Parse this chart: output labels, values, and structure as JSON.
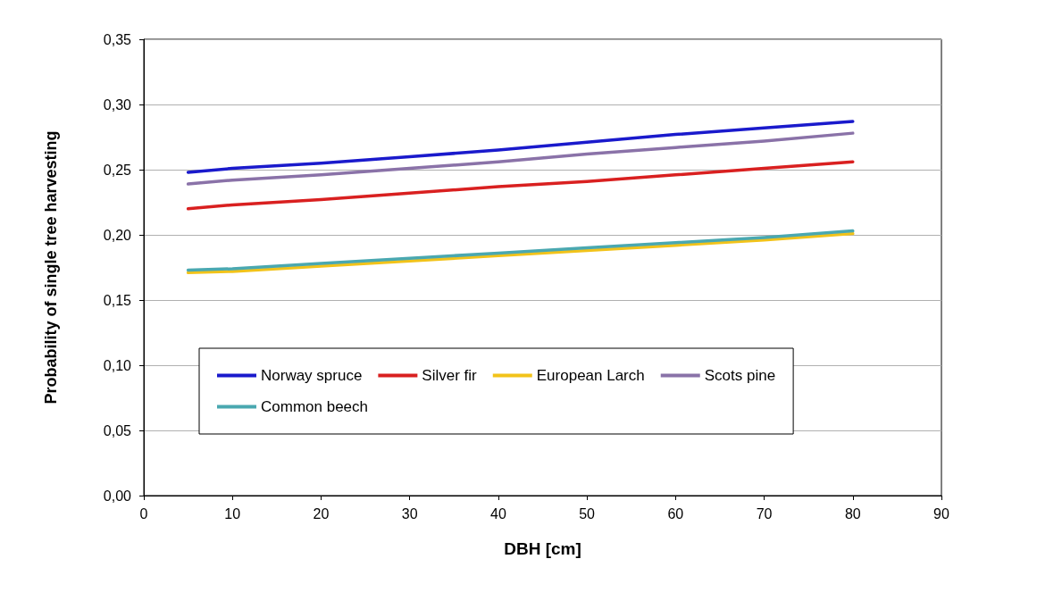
{
  "chart_data": {
    "type": "line",
    "xlabel": "DBH [cm]",
    "ylabel": "Probability of single tree harvesting",
    "x": [
      5,
      10,
      20,
      30,
      40,
      50,
      60,
      70,
      80
    ],
    "series": [
      {
        "name": "Norway spruce",
        "color": "#1a1acc",
        "values": [
          0.248,
          0.251,
          0.255,
          0.26,
          0.265,
          0.271,
          0.277,
          0.282,
          0.287
        ]
      },
      {
        "name": "Silver fir",
        "color": "#d92020",
        "values": [
          0.22,
          0.223,
          0.227,
          0.232,
          0.237,
          0.241,
          0.246,
          0.251,
          0.256
        ]
      },
      {
        "name": "European Larch",
        "color": "#f2c31a",
        "values": [
          0.171,
          0.172,
          0.176,
          0.18,
          0.184,
          0.188,
          0.192,
          0.196,
          0.201
        ]
      },
      {
        "name": "Scots pine",
        "color": "#8a72a8",
        "values": [
          0.239,
          0.242,
          0.246,
          0.251,
          0.256,
          0.262,
          0.267,
          0.272,
          0.278
        ]
      },
      {
        "name": "Common beech",
        "color": "#4aa8b0",
        "values": [
          0.173,
          0.174,
          0.178,
          0.182,
          0.186,
          0.19,
          0.194,
          0.198,
          0.203
        ]
      }
    ],
    "xlim": [
      0,
      90
    ],
    "xticks": [
      0,
      10,
      20,
      30,
      40,
      50,
      60,
      70,
      80,
      90
    ],
    "ylim": [
      0,
      0.35
    ],
    "yticks": [
      {
        "value": 0,
        "label": "0,00"
      },
      {
        "value": 0.05,
        "label": "0,05"
      },
      {
        "value": 0.1,
        "label": "0,10"
      },
      {
        "value": 0.15,
        "label": "0,15"
      },
      {
        "value": 0.2,
        "label": "0,20"
      },
      {
        "value": 0.25,
        "label": "0,25"
      },
      {
        "value": 0.3,
        "label": "0,30"
      },
      {
        "value": 0.35,
        "label": "0,35"
      }
    ],
    "grid": "y",
    "legend": "bottom",
    "marker": "none",
    "line_style": "solid"
  }
}
